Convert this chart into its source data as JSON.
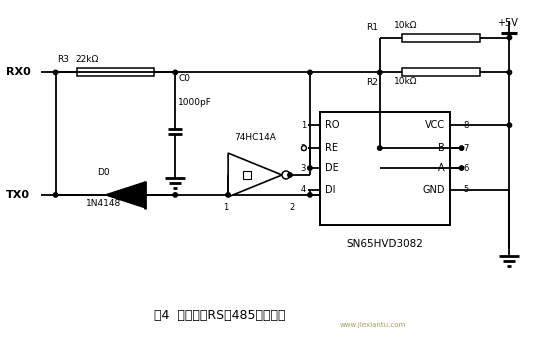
{
  "title": "图4  零延时的RS－485接口电路",
  "bg_color": "#ffffff",
  "line_color": "#000000",
  "text_color": "#000000",
  "fig_width": 5.57,
  "fig_height": 3.39,
  "dpi": 100,
  "watermark1": "www.jiexiantu.com",
  "watermark2": "jiexiantu"
}
